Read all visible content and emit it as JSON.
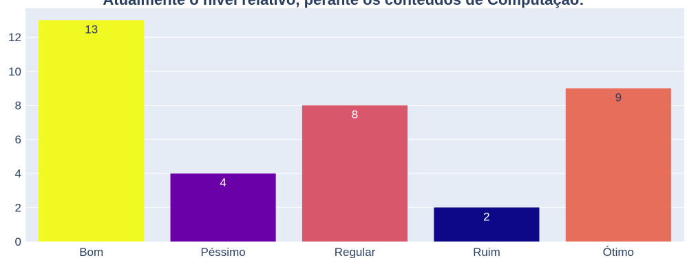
{
  "chart_data": {
    "type": "bar",
    "title": "Atualmente o nível relativo, perante os conteúdos de Computação:",
    "categories": [
      "Bom",
      "Péssimo",
      "Regular",
      "Ruim",
      "Ótimo"
    ],
    "values": [
      13,
      4,
      8,
      2,
      9
    ],
    "colors": [
      "#f0f921",
      "#6a00a8",
      "#d8576b",
      "#0d0887",
      "#e66e5a"
    ],
    "label_colors": [
      "#2a3f5f",
      "#ffffff",
      "#ffffff",
      "#ffffff",
      "#2a3f5f"
    ],
    "xlabel": "",
    "ylabel": "",
    "ylim": [
      0,
      13.7
    ],
    "yticks": [
      0,
      2,
      4,
      6,
      8,
      10,
      12
    ],
    "grid": true,
    "plot_background": "#e5ecf6"
  }
}
